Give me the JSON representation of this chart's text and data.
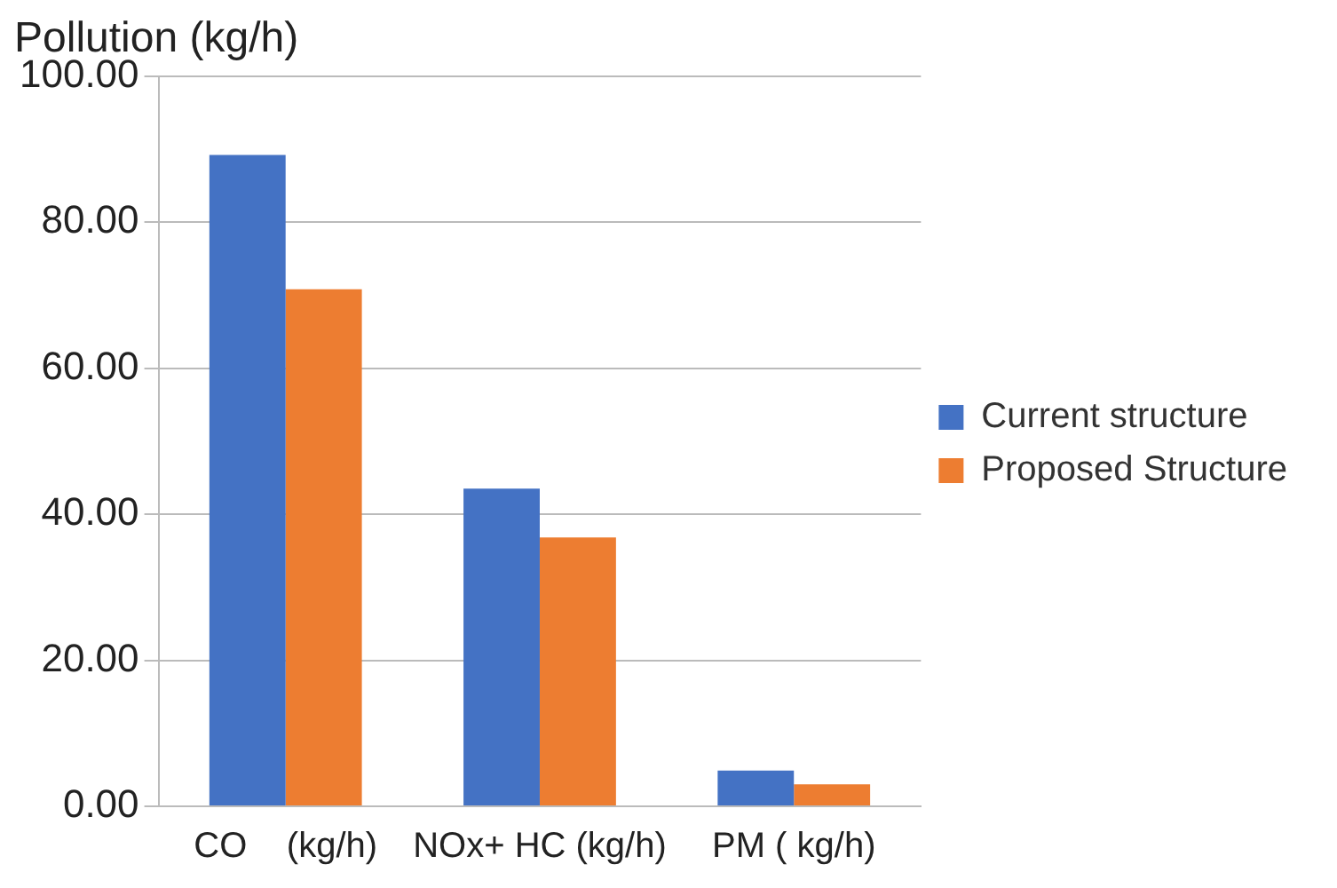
{
  "chart_data": {
    "type": "bar",
    "ylabel": "Pollution (kg/h)",
    "categories": [
      "CO    (kg/h)",
      "NOx+ HC (kg/h)",
      "PM ( kg/h)"
    ],
    "series": [
      {
        "name": "Current structure",
        "color": "#4472c4",
        "values": [
          89.2,
          43.5,
          4.9
        ]
      },
      {
        "name": "Proposed Structure",
        "color": "#ed7d31",
        "values": [
          70.8,
          36.8,
          3.0
        ]
      }
    ],
    "ylim": [
      0,
      100
    ],
    "yticks": [
      {
        "value": 0,
        "label": "0.00"
      },
      {
        "value": 20,
        "label": "20.00"
      },
      {
        "value": 40,
        "label": "40.00"
      },
      {
        "value": 60,
        "label": "60.00"
      },
      {
        "value": 80,
        "label": "80.00"
      },
      {
        "value": 100,
        "label": "100.00"
      }
    ],
    "grid": "y",
    "legend": "right"
  }
}
